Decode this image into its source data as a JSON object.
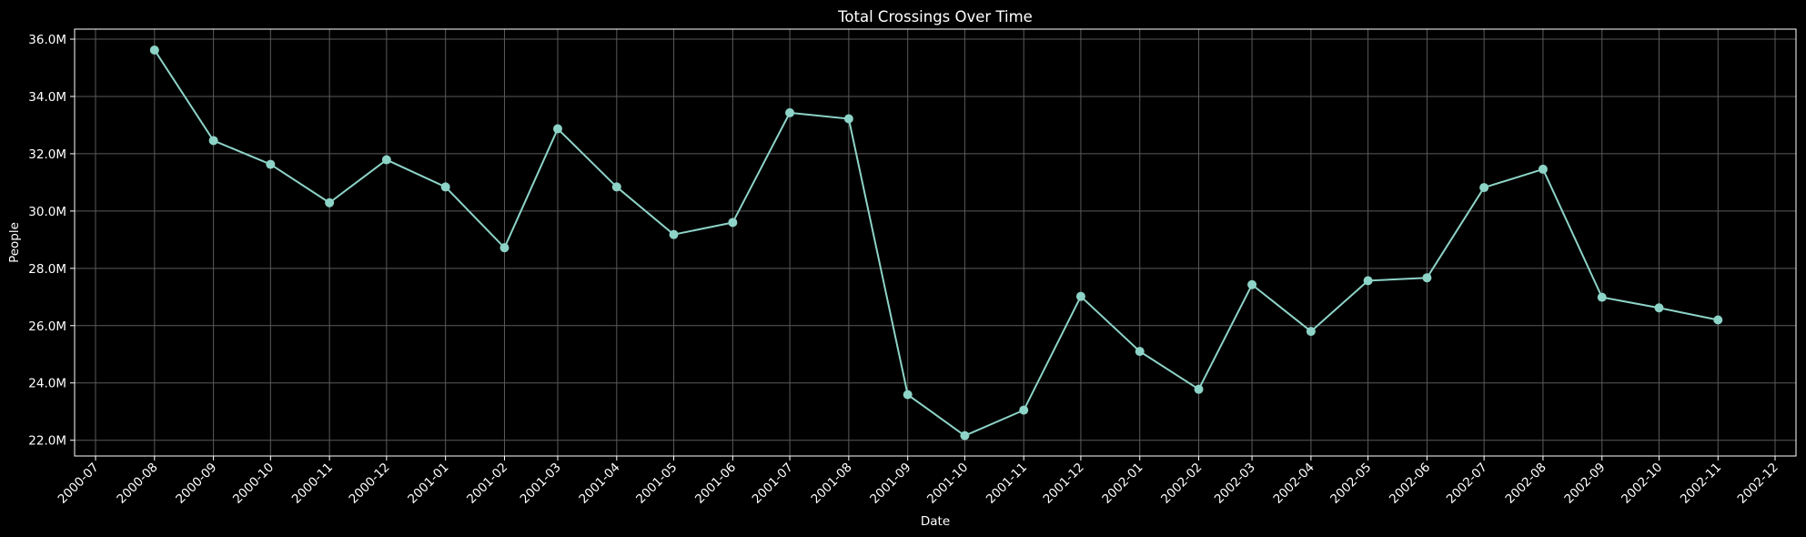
{
  "chart_data": {
    "type": "line",
    "title": "Total Crossings Over Time",
    "xlabel": "Date",
    "ylabel": "People",
    "x_ticks": [
      "2000-07",
      "2000-08",
      "2000-09",
      "2000-10",
      "2000-11",
      "2000-12",
      "2001-01",
      "2001-02",
      "2001-03",
      "2001-04",
      "2001-05",
      "2001-06",
      "2001-07",
      "2001-08",
      "2001-09",
      "2001-10",
      "2001-11",
      "2001-12",
      "2002-01",
      "2002-02",
      "2002-03",
      "2002-04",
      "2002-05",
      "2002-06",
      "2002-07",
      "2002-08",
      "2002-09",
      "2002-10",
      "2002-11",
      "2002-12"
    ],
    "y_ticks": [
      "22.0M",
      "24.0M",
      "26.0M",
      "28.0M",
      "30.0M",
      "32.0M",
      "34.0M",
      "36.0M"
    ],
    "y_tick_values": [
      22000000,
      24000000,
      26000000,
      28000000,
      30000000,
      32000000,
      34000000,
      36000000
    ],
    "ylim": [
      21450000,
      36350000
    ],
    "xlim": [
      "2000-06-20",
      "2002-12-12"
    ],
    "grid": true,
    "series": [
      {
        "color": "#8dd3c7",
        "marker": "circle",
        "points": [
          {
            "x": "2000-08-01",
            "y": 35620000
          },
          {
            "x": "2000-09-01",
            "y": 32460000
          },
          {
            "x": "2000-10-01",
            "y": 31630000
          },
          {
            "x": "2000-11-01",
            "y": 30290000
          },
          {
            "x": "2000-12-01",
            "y": 31790000
          },
          {
            "x": "2001-01-01",
            "y": 30840000
          },
          {
            "x": "2001-02-01",
            "y": 28720000
          },
          {
            "x": "2001-03-01",
            "y": 32870000
          },
          {
            "x": "2001-04-01",
            "y": 30840000
          },
          {
            "x": "2001-05-01",
            "y": 29180000
          },
          {
            "x": "2001-06-01",
            "y": 29600000
          },
          {
            "x": "2001-07-01",
            "y": 33430000
          },
          {
            "x": "2001-08-01",
            "y": 33220000
          },
          {
            "x": "2001-09-01",
            "y": 23590000
          },
          {
            "x": "2001-10-01",
            "y": 22160000
          },
          {
            "x": "2001-11-01",
            "y": 23050000
          },
          {
            "x": "2001-12-01",
            "y": 27020000
          },
          {
            "x": "2002-01-01",
            "y": 25100000
          },
          {
            "x": "2002-02-01",
            "y": 23780000
          },
          {
            "x": "2002-03-01",
            "y": 27430000
          },
          {
            "x": "2002-04-01",
            "y": 25800000
          },
          {
            "x": "2002-05-01",
            "y": 27570000
          },
          {
            "x": "2002-06-01",
            "y": 27670000
          },
          {
            "x": "2002-07-01",
            "y": 30820000
          },
          {
            "x": "2002-08-01",
            "y": 31460000
          },
          {
            "x": "2002-09-01",
            "y": 26990000
          },
          {
            "x": "2002-10-01",
            "y": 26620000
          },
          {
            "x": "2002-11-01",
            "y": 26200000
          }
        ]
      }
    ],
    "colors": {
      "background": "#000000",
      "axes_face": "#000000",
      "text": "#ffffff",
      "grid": "#5a5a5a",
      "spine": "#ffffff"
    }
  }
}
